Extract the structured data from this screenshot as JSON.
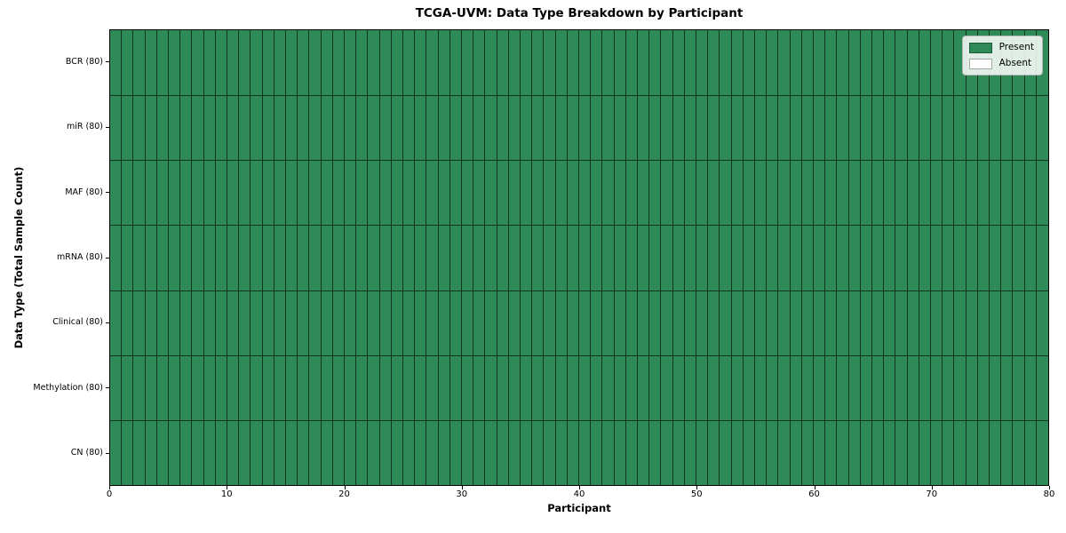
{
  "chart_data": {
    "type": "heatmap",
    "title": "TCGA-UVM: Data Type Breakdown by Participant",
    "xlabel": "Participant",
    "ylabel": "Data Type (Total Sample Count)",
    "xlim": [
      0,
      80
    ],
    "n_participants": 80,
    "x_ticks": [
      0,
      10,
      20,
      30,
      40,
      50,
      60,
      70,
      80
    ],
    "legend_position": "upper right",
    "rows": [
      {
        "label": "BCR (80)",
        "data_type": "BCR",
        "total_samples": 80,
        "present_count": 80,
        "absent_count": 0
      },
      {
        "label": "miR (80)",
        "data_type": "miR",
        "total_samples": 80,
        "present_count": 80,
        "absent_count": 0
      },
      {
        "label": "MAF (80)",
        "data_type": "MAF",
        "total_samples": 80,
        "present_count": 80,
        "absent_count": 0
      },
      {
        "label": "mRNA (80)",
        "data_type": "mRNA",
        "total_samples": 80,
        "present_count": 80,
        "absent_count": 0
      },
      {
        "label": "Clinical (80)",
        "data_type": "Clinical",
        "total_samples": 80,
        "present_count": 80,
        "absent_count": 0
      },
      {
        "label": "Methylation (80)",
        "data_type": "Methylation",
        "total_samples": 80,
        "present_count": 80,
        "absent_count": 0
      },
      {
        "label": "CN (80)",
        "data_type": "CN",
        "total_samples": 80,
        "present_count": 80,
        "absent_count": 0
      }
    ],
    "legend": [
      {
        "label": "Present",
        "color": "#2E8B57"
      },
      {
        "label": "Absent",
        "color": "#FFFFFF"
      }
    ],
    "colors": {
      "present": "#2E8B57",
      "absent": "#FFFFFF",
      "cell_border": "rgba(0,0,0,0.62)",
      "axis": "#000000"
    }
  }
}
